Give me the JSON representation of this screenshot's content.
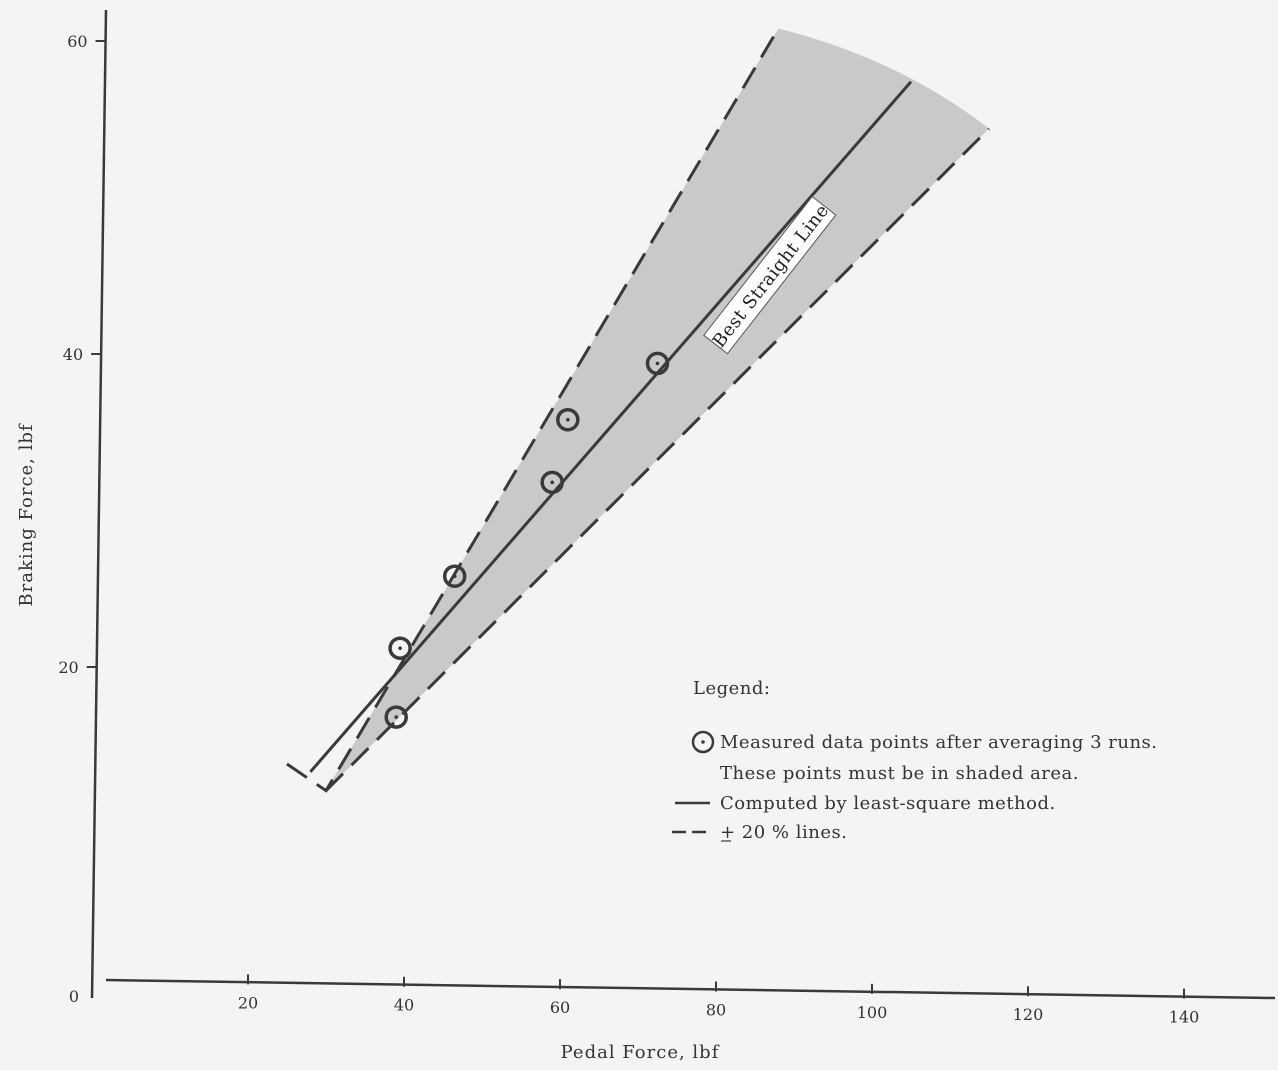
{
  "chart_data": {
    "type": "scatter",
    "title": "",
    "xlabel": "Pedal Force, lbf",
    "ylabel": "Braking Force, lbf",
    "xlim": [
      0,
      150
    ],
    "ylim": [
      0,
      60
    ],
    "x_ticks": [
      20,
      40,
      60,
      80,
      100,
      120,
      140
    ],
    "x_tick_labels": [
      "20",
      "40",
      "60",
      "80",
      "100",
      "120",
      "140"
    ],
    "y_ticks": [
      20,
      40,
      60
    ],
    "y_tick_labels": [
      "20",
      "40",
      "60"
    ],
    "origin_label": "0",
    "grid": false,
    "series": [
      {
        "kind": "points",
        "x": [
          39,
          39.5,
          46.5,
          59,
          61,
          72.5
        ],
        "y": [
          16.8,
          21.2,
          25.8,
          31.8,
          35.8,
          39.4
        ]
      },
      {
        "kind": "line",
        "x": [
          28,
          105
        ],
        "y": [
          13.3,
          57.4
        ]
      },
      {
        "kind": "dashed",
        "x": [
          25,
          30,
          88
        ],
        "y": [
          13.8,
          12.1,
          60.8
        ],
        "curve": "upper"
      },
      {
        "kind": "dashed",
        "x": [
          30,
          115
        ],
        "y": [
          12.1,
          54.4
        ],
        "curve": "lower"
      }
    ],
    "band_fill": "#c9c9c7",
    "annotations": [
      {
        "text": "Best Straight Line",
        "x": 87,
        "y": 45,
        "angle": -52
      }
    ],
    "legend": {
      "position": "bottom-right",
      "title": "Legend:",
      "items": [
        {
          "symbol": "circle-dot",
          "text": "Measured data points after averaging 3 runs."
        },
        {
          "symbol": "none",
          "text": "These points must be in shaded area."
        },
        {
          "symbol": "solid",
          "text": "Computed by least-square method."
        },
        {
          "symbol": "dashed",
          "text": "+ 20 % lines."
        }
      ]
    }
  }
}
